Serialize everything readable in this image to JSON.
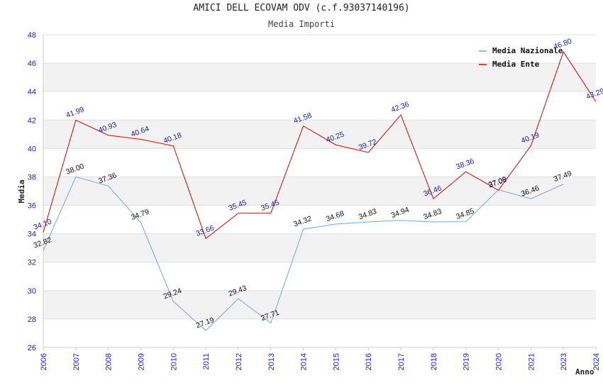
{
  "chart_data": {
    "type": "line",
    "title": "AMICI DELL ECOVAM ODV (c.f.93037140196)",
    "subtitle": "Media Importi",
    "xlabel": "Anno",
    "ylabel": "Media",
    "ylim": [
      26,
      48
    ],
    "yticks": [
      26,
      28,
      30,
      32,
      34,
      36,
      38,
      40,
      42,
      44,
      46,
      48
    ],
    "categories": [
      "2006",
      "2007",
      "2008",
      "2009",
      "2010",
      "2011",
      "2012",
      "2013",
      "2014",
      "2015",
      "2016",
      "2017",
      "2018",
      "2019",
      "2020",
      "2021",
      "2023",
      "2024"
    ],
    "series": [
      {
        "name": "Media Nazionale",
        "color": "#6fa8dc",
        "values": [
          32.82,
          38.0,
          37.36,
          34.79,
          29.24,
          27.19,
          29.43,
          27.71,
          34.32,
          34.68,
          34.83,
          34.94,
          34.83,
          34.85,
          37.09,
          36.46,
          37.49,
          null
        ]
      },
      {
        "name": "Media Ente",
        "color": "#dd0000",
        "values": [
          34.1,
          41.99,
          40.93,
          40.64,
          40.18,
          33.66,
          35.45,
          35.45,
          41.58,
          40.25,
          39.72,
          42.36,
          36.46,
          38.36,
          37.06,
          40.19,
          46.8,
          43.29
        ]
      }
    ],
    "legend_position": "top-right",
    "grid": true
  }
}
